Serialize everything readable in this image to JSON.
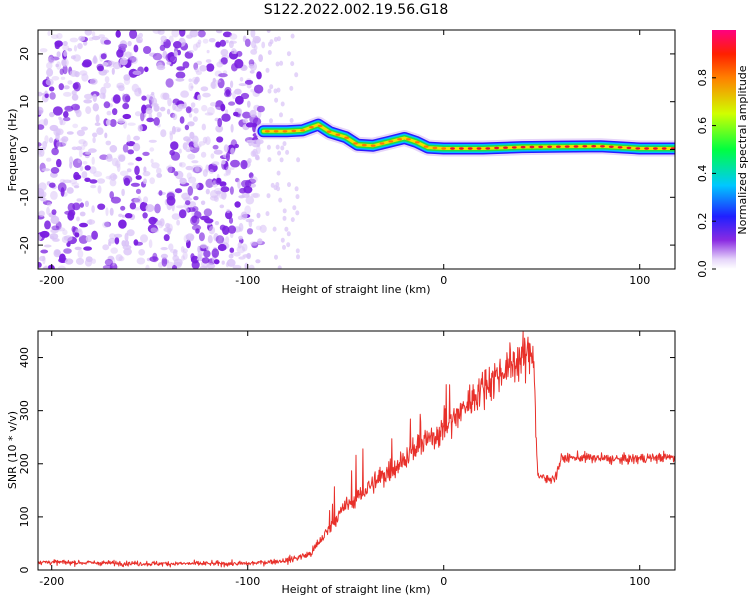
{
  "title": "S122.2022.002.19.56.G18",
  "chart_data": [
    {
      "type": "heatmap",
      "title": "S122.2022.002.19.56.G18",
      "xlabel": "Height of straight line (km)",
      "ylabel": "Frequency (Hz)",
      "xlim": [
        -207,
        118
      ],
      "ylim": [
        -25,
        25
      ],
      "xticks": [
        -200,
        -100,
        0,
        100
      ],
      "yticks": [
        -20,
        -10,
        0,
        10,
        20
      ],
      "noise_region_x": [
        -207,
        -92
      ],
      "signal_start_x": -92,
      "ridge": [
        {
          "x": -92,
          "f": 3.8
        },
        {
          "x": -80,
          "f": 3.8
        },
        {
          "x": -72,
          "f": 4.0
        },
        {
          "x": -64,
          "f": 5.2
        },
        {
          "x": -58,
          "f": 3.6
        },
        {
          "x": -50,
          "f": 2.6
        },
        {
          "x": -44,
          "f": 1.0
        },
        {
          "x": -36,
          "f": 0.8
        },
        {
          "x": -28,
          "f": 1.6
        },
        {
          "x": -20,
          "f": 2.4
        },
        {
          "x": -14,
          "f": 1.6
        },
        {
          "x": -8,
          "f": 0.4
        },
        {
          "x": 0,
          "f": 0.2
        },
        {
          "x": 20,
          "f": 0.2
        },
        {
          "x": 40,
          "f": 0.5
        },
        {
          "x": 60,
          "f": 0.6
        },
        {
          "x": 80,
          "f": 0.7
        },
        {
          "x": 100,
          "f": 0.2
        },
        {
          "x": 118,
          "f": 0.2
        }
      ],
      "colorbar": {
        "label": "Normalized spectral amplitude",
        "range": [
          0.0,
          1.0
        ],
        "ticks": [
          "0.0",
          "0.2",
          "0.4",
          "0.6",
          "0.8"
        ]
      },
      "grid": false,
      "colors": {
        "noise": "#7a1fe0",
        "noise_light": "#d9c2f7",
        "signal_core": "#e8102a"
      }
    },
    {
      "type": "line",
      "xlabel": "Height of straight line (km)",
      "ylabel": "SNR (10 * v/v)",
      "xlim": [
        -207,
        118
      ],
      "ylim": [
        0,
        450
      ],
      "xticks": [
        -200,
        -100,
        0,
        100
      ],
      "yticks": [
        0,
        100,
        200,
        300,
        400
      ],
      "color": "#e8302a",
      "x": [
        -207,
        -150,
        -100,
        -80,
        -68,
        -60,
        -50,
        -40,
        -30,
        -20,
        -10,
        0,
        10,
        20,
        30,
        40,
        46,
        47,
        48,
        52,
        57,
        60,
        70,
        80,
        90,
        100,
        110,
        118
      ],
      "y": [
        15,
        12,
        12,
        18,
        30,
        70,
        120,
        150,
        180,
        210,
        240,
        265,
        305,
        345,
        375,
        400,
        410,
        260,
        180,
        170,
        175,
        210,
        212,
        210,
        208,
        210,
        212,
        212
      ],
      "grid": false
    }
  ]
}
